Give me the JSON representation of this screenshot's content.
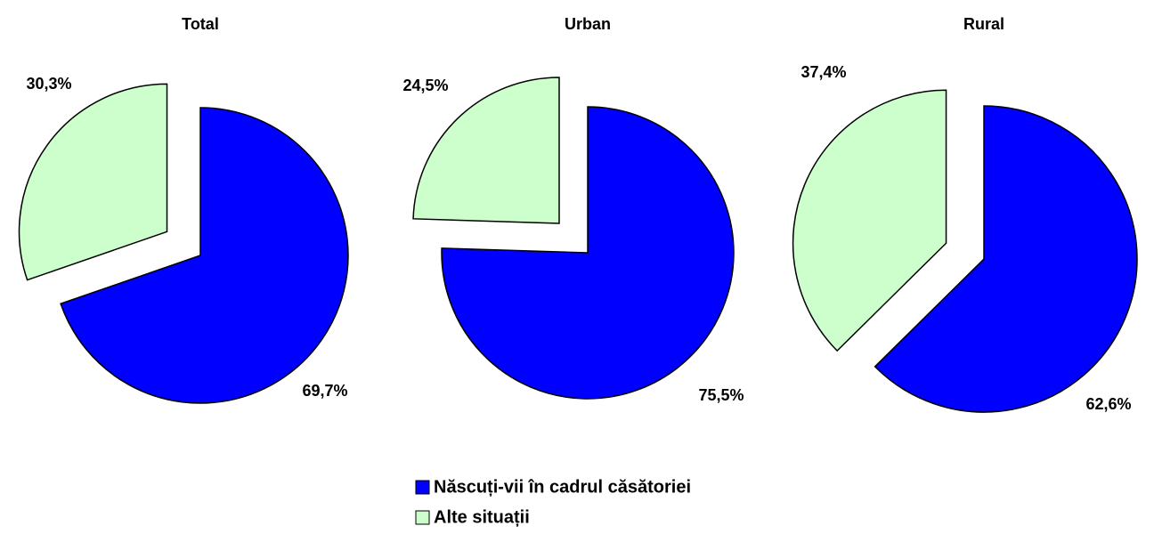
{
  "chart_data": [
    {
      "type": "pie",
      "title": "Total",
      "categories": [
        "Născuți-vii în cadrul căsătoriei",
        "Alte situații"
      ],
      "values": [
        69.7,
        30.3
      ],
      "value_labels": [
        "69,7%",
        "30,3%"
      ],
      "colors": [
        "#0000ff",
        "#ccffcc"
      ],
      "legend": "bottom"
    },
    {
      "type": "pie",
      "title": "Urban",
      "categories": [
        "Născuți-vii în cadrul căsătoriei",
        "Alte situații"
      ],
      "values": [
        75.5,
        24.5
      ],
      "value_labels": [
        "75,5%",
        "24,5%"
      ],
      "colors": [
        "#0000ff",
        "#ccffcc"
      ],
      "legend": "bottom"
    },
    {
      "type": "pie",
      "title": "Rural",
      "categories": [
        "Născuți-vii în cadrul căsătoriei",
        "Alte situații"
      ],
      "values": [
        62.6,
        37.4
      ],
      "value_labels": [
        "62,6%",
        "37,4%"
      ],
      "colors": [
        "#0000ff",
        "#ccffcc"
      ],
      "legend": "bottom"
    }
  ]
}
